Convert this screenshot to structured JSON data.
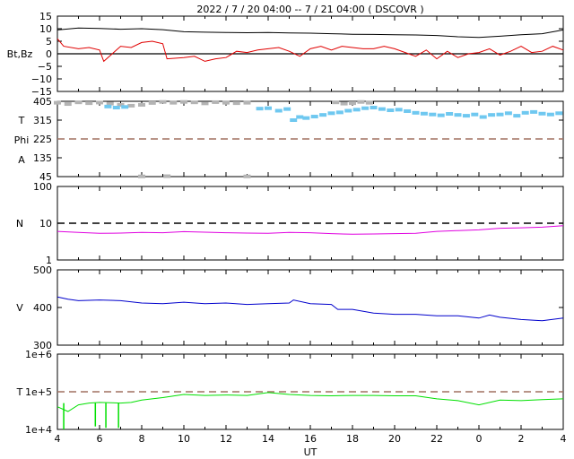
{
  "title": "2022 /  7 / 20   04:00 --  7 / 21   04:00 ( DSCOVR )",
  "xlabel": "UT",
  "x_ticks": [
    "4",
    "6",
    "8",
    "10",
    "12",
    "14",
    "16",
    "18",
    "20",
    "22",
    "0",
    "2",
    "4"
  ],
  "colors": {
    "bt": "#000000",
    "bz": "#e00000",
    "theta": "#b4b4b4",
    "phi": "#6fc8f0",
    "density": "#e000e0",
    "speed": "#0000cc",
    "temp": "#00e000",
    "ref": "#a07060"
  },
  "chart_data": [
    {
      "type": "line",
      "ylabel": "Bt,Bz",
      "yticks": [
        "15",
        "10",
        "5",
        "0",
        "−5",
        "−10",
        "−15"
      ],
      "ylim": [
        -15,
        15
      ],
      "zero_line": 0,
      "series": [
        {
          "name": "Bt",
          "x": [
            4,
            5,
            6,
            7,
            8,
            9,
            10,
            11,
            12,
            13,
            14,
            15,
            16,
            17,
            18,
            19,
            20,
            21,
            22,
            23,
            24,
            25,
            26,
            27,
            28
          ],
          "y": [
            9.5,
            10.3,
            10.1,
            9.8,
            10.0,
            9.6,
            8.8,
            8.6,
            8.5,
            8.4,
            8.5,
            8.3,
            8.2,
            8.0,
            7.8,
            7.7,
            7.6,
            7.5,
            7.3,
            6.8,
            6.5,
            7.0,
            7.6,
            8.0,
            9.5
          ]
        },
        {
          "name": "Bz",
          "x": [
            4,
            4.3,
            5,
            5.5,
            6,
            6.2,
            7,
            7.5,
            8,
            8.5,
            9,
            9.2,
            10,
            10.5,
            11,
            11.5,
            12,
            12.5,
            13,
            13.5,
            14,
            14.5,
            15,
            15.5,
            16,
            16.5,
            17,
            17.5,
            18,
            18.5,
            19,
            19.5,
            20,
            20.5,
            21,
            21.5,
            22,
            22.5,
            23,
            23.5,
            24,
            24.5,
            25,
            25.5,
            26,
            26.5,
            27,
            27.5,
            28
          ],
          "y": [
            6,
            3,
            2,
            2.5,
            1.5,
            -3,
            3,
            2.5,
            4.5,
            5,
            4,
            -2,
            -1.5,
            -1,
            -3,
            -2,
            -1.5,
            1,
            0.5,
            1.5,
            2,
            2.5,
            1,
            -1,
            2,
            3,
            1.5,
            3,
            2.5,
            2,
            2,
            3,
            2,
            0.5,
            -1,
            1.5,
            -2,
            1,
            -1.5,
            0,
            0.5,
            2,
            -0.5,
            1,
            3,
            0.5,
            1,
            3,
            1.5
          ]
        }
      ]
    },
    {
      "type": "scatter",
      "ylabel": [
        "T",
        "Phi",
        "A"
      ],
      "yticks": [
        "405",
        "315",
        "225",
        "135",
        "45"
      ],
      "ylim": [
        45,
        405
      ],
      "ref_line": 225,
      "series": [
        {
          "name": "theta",
          "x": [
            4,
            4.5,
            5,
            5.5,
            6,
            6.5,
            7,
            7.5,
            8,
            8.5,
            9,
            9.5,
            10,
            10.5,
            11,
            11.5,
            12,
            12.5,
            13,
            17.2,
            17.6,
            18,
            18.4,
            18.8
          ],
          "y": [
            398,
            392,
            400,
            396,
            399,
            394,
            388,
            384,
            388,
            397,
            402,
            398,
            402,
            400,
            395,
            401,
            398,
            396,
            398,
            400,
            394,
            396,
            402,
            398
          ]
        },
        {
          "name": "theta-low",
          "x": [
            8,
            9.2,
            13
          ],
          "y": [
            46,
            47,
            46
          ]
        },
        {
          "name": "phi",
          "x": [
            6.4,
            6.8,
            7.2,
            13.6,
            14,
            14.5,
            14.9,
            15.2,
            15.5,
            15.8,
            16.2,
            16.6,
            17,
            17.4,
            17.8,
            18.2,
            18.6,
            19,
            19.4,
            19.8,
            20.2,
            20.6,
            21,
            21.4,
            21.8,
            22.2,
            22.6,
            23,
            23.4,
            23.8,
            24.2,
            24.6,
            25,
            25.4,
            25.8,
            26.2,
            26.6,
            27,
            27.4,
            27.8
          ],
          "y": [
            380,
            375,
            378,
            370,
            372,
            360,
            368,
            315,
            330,
            325,
            332,
            340,
            348,
            352,
            360,
            365,
            372,
            375,
            368,
            362,
            365,
            358,
            350,
            346,
            342,
            338,
            345,
            340,
            336,
            342,
            330,
            340,
            342,
            348,
            336,
            350,
            354,
            346,
            342,
            348
          ]
        }
      ]
    },
    {
      "type": "line",
      "ylabel": "N",
      "yticks": [
        "100",
        "10",
        "1"
      ],
      "ylim": [
        1,
        100
      ],
      "log": true,
      "ref_line": 10,
      "series": [
        {
          "name": "density",
          "x": [
            4,
            5,
            6,
            7,
            8,
            9,
            10,
            11,
            12,
            13,
            14,
            15,
            16,
            17,
            18,
            19,
            20,
            21,
            22,
            23,
            24,
            25,
            26,
            27,
            28
          ],
          "y": [
            6.0,
            5.6,
            5.3,
            5.4,
            5.6,
            5.5,
            5.9,
            5.7,
            5.5,
            5.4,
            5.3,
            5.6,
            5.5,
            5.2,
            5.0,
            5.1,
            5.2,
            5.3,
            6.0,
            6.3,
            6.6,
            7.3,
            7.5,
            7.8,
            8.6
          ]
        }
      ]
    },
    {
      "type": "line",
      "ylabel": "V",
      "yticks": [
        "500",
        "400",
        "300"
      ],
      "ylim": [
        300,
        500
      ],
      "series": [
        {
          "name": "speed",
          "x": [
            4,
            4.5,
            5,
            6,
            7,
            8,
            9,
            10,
            11,
            12,
            13,
            14,
            15,
            15.2,
            16,
            17,
            17.3,
            18,
            19,
            20,
            21,
            22,
            23,
            24,
            24.5,
            25,
            26,
            27,
            28
          ],
          "y": [
            428,
            422,
            418,
            420,
            418,
            412,
            410,
            414,
            410,
            412,
            408,
            410,
            412,
            420,
            410,
            408,
            395,
            395,
            385,
            382,
            382,
            378,
            378,
            372,
            380,
            374,
            368,
            365,
            372
          ]
        }
      ]
    },
    {
      "type": "line",
      "ylabel": "T",
      "yticks": [
        "1e+6",
        "1e+5",
        "1e+4"
      ],
      "ylim": [
        10000,
        1000000
      ],
      "log": true,
      "ref_line": 100000,
      "series": [
        {
          "name": "temperature",
          "x": [
            4,
            4.5,
            5,
            5.5,
            6,
            7,
            7.5,
            8,
            9,
            10,
            11,
            12,
            13,
            14,
            15,
            16,
            17,
            18,
            19,
            20,
            21,
            22,
            23,
            24,
            25,
            26,
            27,
            28
          ],
          "y": [
            40000,
            30000,
            45000,
            50000,
            52000,
            50000,
            52000,
            60000,
            70000,
            85000,
            80000,
            82000,
            80000,
            95000,
            85000,
            80000,
            78000,
            80000,
            80000,
            78000,
            78000,
            65000,
            58000,
            45000,
            60000,
            58000,
            62000,
            65000
          ]
        },
        {
          "name": "temperature-dips",
          "x": [
            4.3,
            5.8,
            6.3,
            6.9
          ],
          "y": [
            10000,
            12000,
            11000,
            11000
          ]
        }
      ]
    }
  ]
}
